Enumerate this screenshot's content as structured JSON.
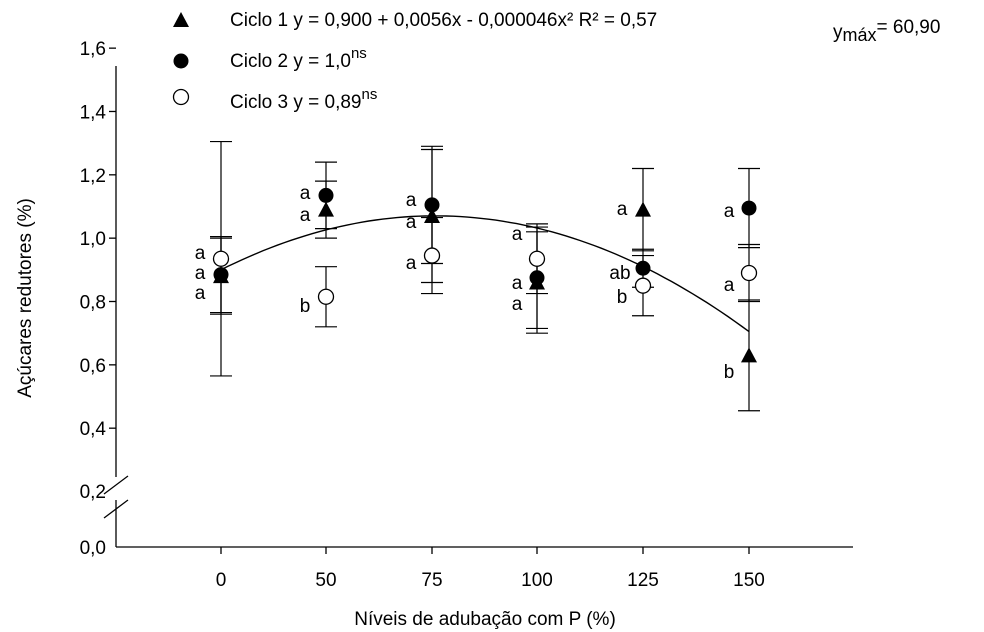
{
  "chart_data": {
    "type": "scatter",
    "xlabel": "Níveis de adubação com P (%)",
    "ylabel": "Açúcares redutores (%)",
    "x_categories": [
      "0",
      "50",
      "75",
      "100",
      "125",
      "150"
    ],
    "y_ticks": [
      "0,0",
      "0,2",
      "0,4",
      "0,6",
      "0,8",
      "1,0",
      "1,2",
      "1,4",
      "1,6"
    ],
    "ylim": [
      0.0,
      1.6
    ],
    "axis_break": "between 0,0 and 0,2 on the y axis",
    "grid": false,
    "legend_position": "top",
    "series": [
      {
        "name": "Ciclo 1",
        "marker": "triangle",
        "equation": "y = 0,900 + 0,0056x - 0,000046x² R² = 0,57",
        "equation_suffix": "",
        "x": [
          0,
          50,
          75,
          100,
          125,
          150
        ],
        "y": [
          0.88,
          1.09,
          1.07,
          0.86,
          1.09,
          0.63
        ],
        "err": [
          0.12,
          0.09,
          0.21,
          0.16,
          0.13,
          0.175
        ],
        "letters": [
          "a",
          "a",
          "a",
          "a",
          "a",
          "b"
        ],
        "fit": {
          "intercept": 0.9,
          "b1": 0.0056,
          "b2": -4.6e-05
        }
      },
      {
        "name": "Ciclo 2",
        "marker": "filled-circle",
        "equation": "y = 1,0",
        "equation_suffix": "ns",
        "x": [
          0,
          50,
          75,
          100,
          125,
          150
        ],
        "y": [
          0.885,
          1.135,
          1.105,
          0.875,
          0.905,
          1.095
        ],
        "err": [
          0.12,
          0.105,
          0.185,
          0.16,
          0.06,
          0.125
        ],
        "letters": [
          "a",
          "a",
          "a",
          "a",
          "ab",
          "a"
        ]
      },
      {
        "name": "Ciclo 3",
        "marker": "open-circle",
        "equation": "y = 0,89",
        "equation_suffix": "ns",
        "x": [
          0,
          50,
          75,
          100,
          125,
          150
        ],
        "y": [
          0.935,
          0.815,
          0.945,
          0.935,
          0.85,
          0.89
        ],
        "err": [
          0.37,
          0.095,
          0.12,
          0.11,
          0.095,
          0.09
        ],
        "letters": [
          "a",
          "b",
          "a",
          "a",
          "b",
          "a"
        ]
      }
    ],
    "annotation": {
      "label": "y",
      "subscript": "máx",
      "value": "= 60,90"
    }
  }
}
